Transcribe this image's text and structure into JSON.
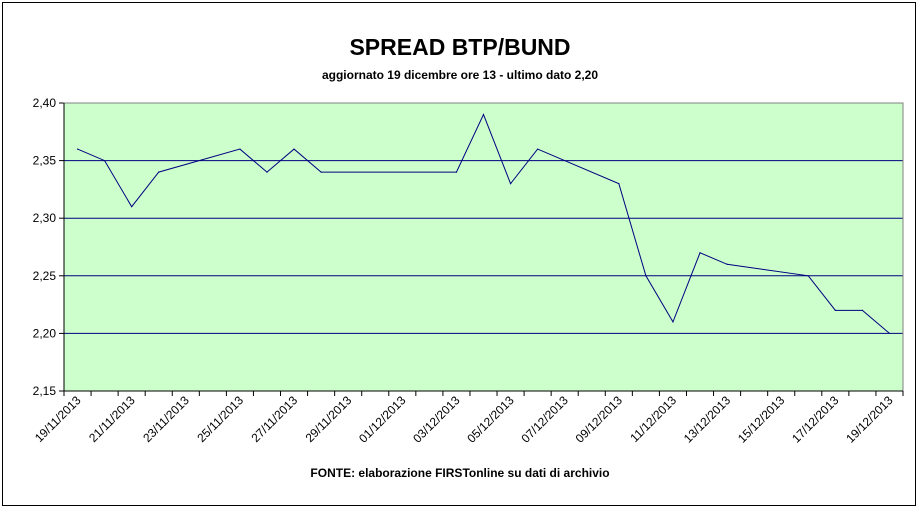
{
  "chart_data": {
    "type": "line",
    "title": "SPREAD BTP/BUND",
    "subtitle": "aggiornato 19 dicembre ore 13  - ultimo dato 2,20",
    "source": "FONTE:  elaborazione FIRSTonline su dati di archivio",
    "xlabel": "",
    "ylabel": "",
    "ylim": [
      2.15,
      2.4
    ],
    "yticks": [
      "2,15",
      "2,20",
      "2,25",
      "2,30",
      "2,35",
      "2,40"
    ],
    "xticks": [
      "19/11/2013",
      "21/11/2013",
      "23/11/2013",
      "25/11/2013",
      "27/11/2013",
      "29/11/2013",
      "01/12/2013",
      "03/12/2013",
      "05/12/2013",
      "07/12/2013",
      "09/12/2013",
      "11/12/2013",
      "13/12/2013",
      "15/12/2013",
      "17/12/2013",
      "19/12/2013"
    ],
    "grid": true,
    "background": "#ccffcc",
    "line_color": "#000080",
    "grid_color": "#000080",
    "series": [
      {
        "points": [
          [
            "19/11/2013",
            2.36
          ],
          [
            "20/11/2013",
            2.35
          ],
          [
            "21/11/2013",
            2.31
          ],
          [
            "22/11/2013",
            2.34
          ],
          [
            "25/11/2013",
            2.36
          ],
          [
            "26/11/2013",
            2.34
          ],
          [
            "27/11/2013",
            2.36
          ],
          [
            "28/11/2013",
            2.34
          ],
          [
            "03/12/2013",
            2.34
          ],
          [
            "04/12/2013",
            2.39
          ],
          [
            "05/12/2013",
            2.33
          ],
          [
            "06/12/2013",
            2.36
          ],
          [
            "09/12/2013",
            2.33
          ],
          [
            "10/12/2013",
            2.25
          ],
          [
            "11/12/2013",
            2.21
          ],
          [
            "12/12/2013",
            2.27
          ],
          [
            "13/12/2013",
            2.26
          ],
          [
            "16/12/2013",
            2.25
          ],
          [
            "17/12/2013",
            2.22
          ],
          [
            "18/12/2013",
            2.22
          ],
          [
            "19/12/2013",
            2.2
          ]
        ]
      }
    ]
  }
}
